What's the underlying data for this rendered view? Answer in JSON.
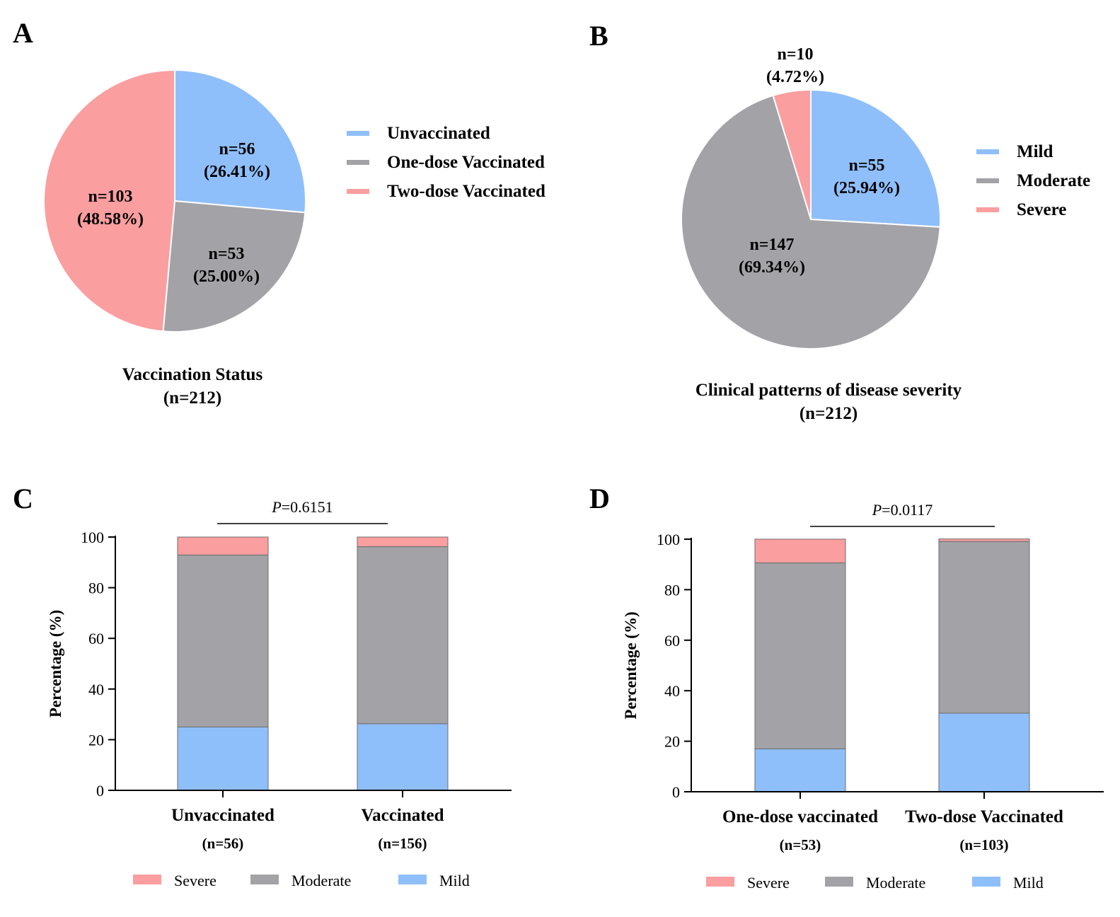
{
  "colors": {
    "blue": "#8fbffa",
    "gray": "#a3a2a7",
    "pink": "#fa9ea0",
    "axis": "#000000"
  },
  "panels": {
    "A": "A",
    "B": "B",
    "C": "C",
    "D": "D"
  },
  "chart_data": [
    {
      "panel": "A",
      "type": "pie",
      "title": "Vaccination Status",
      "subtitle": "(n=212)",
      "legend_position": "right",
      "slices": [
        {
          "name": "Unvaccinated",
          "value": 56,
          "label_n": "n=56",
          "label_pct": "(26.41%)",
          "color": "#8fbffa"
        },
        {
          "name": "One-dose Vaccinated",
          "value": 53,
          "label_n": "n=53",
          "label_pct": "(25.00%)",
          "color": "#a3a2a7"
        },
        {
          "name": "Two-dose Vaccinated",
          "value": 103,
          "label_n": "n=103",
          "label_pct": "(48.58%)",
          "color": "#fa9ea0"
        }
      ]
    },
    {
      "panel": "B",
      "type": "pie",
      "title": "Clinical patterns of disease severity",
      "subtitle": "(n=212)",
      "legend_position": "right",
      "slices": [
        {
          "name": "Mild",
          "value": 55,
          "label_n": "n=55",
          "label_pct": "(25.94%)",
          "color": "#8fbffa"
        },
        {
          "name": "Moderate",
          "value": 147,
          "label_n": "n=147",
          "label_pct": "(69.34%)",
          "color": "#a3a2a7"
        },
        {
          "name": "Severe",
          "value": 10,
          "label_n": "n=10",
          "label_pct": "(4.72%)",
          "color": "#fa9ea0"
        }
      ]
    },
    {
      "panel": "C",
      "type": "bar",
      "stacked": true,
      "ylabel": "Percentage (%)",
      "ylim": [
        0,
        100
      ],
      "yticks": [
        "0",
        "20",
        "40",
        "60",
        "80",
        "100"
      ],
      "categories": [
        "Unvaccinated",
        "Vaccinated"
      ],
      "category_counts": [
        "(n=56)",
        "(n=156)"
      ],
      "series": [
        {
          "name": "Mild",
          "values": [
            25.0,
            26.3
          ],
          "color": "#8fbffa"
        },
        {
          "name": "Moderate",
          "values": [
            67.9,
            69.9
          ],
          "color": "#a3a2a7"
        },
        {
          "name": "Severe",
          "values": [
            7.1,
            3.8
          ],
          "color": "#fa9ea0"
        }
      ],
      "legend_order": [
        "Severe",
        "Moderate",
        "Mild"
      ],
      "legend_position": "bottom",
      "annotation": {
        "p_italic": "P",
        "p_rest": "=0.6151"
      }
    },
    {
      "panel": "D",
      "type": "bar",
      "stacked": true,
      "ylabel": "Percentage (%)",
      "ylim": [
        0,
        100
      ],
      "yticks": [
        "0",
        "20",
        "40",
        "60",
        "80",
        "100"
      ],
      "categories": [
        "One-dose vaccinated",
        "Two-dose Vaccinated"
      ],
      "category_counts": [
        "(n=53)",
        "(n=103)"
      ],
      "series": [
        {
          "name": "Mild",
          "values": [
            17.0,
            31.1
          ],
          "color": "#8fbffa"
        },
        {
          "name": "Moderate",
          "values": [
            73.6,
            68.0
          ],
          "color": "#a3a2a7"
        },
        {
          "name": "Severe",
          "values": [
            9.4,
            1.0
          ],
          "color": "#fa9ea0"
        }
      ],
      "legend_order": [
        "Severe",
        "Moderate",
        "Mild"
      ],
      "legend_position": "bottom",
      "annotation": {
        "p_italic": "P",
        "p_rest": "=0.0117"
      }
    }
  ]
}
